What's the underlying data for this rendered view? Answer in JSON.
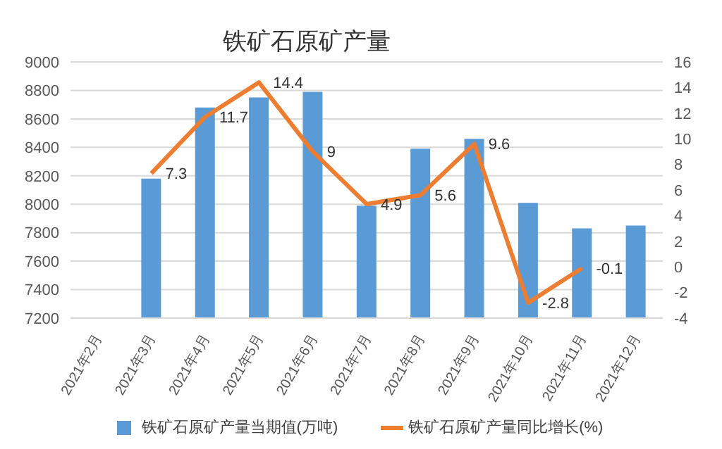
{
  "chart_data": {
    "type": "bar",
    "title": "铁矿石原矿产量",
    "categories": [
      "2021年2月",
      "2021年3月",
      "2021年4月",
      "2021年5月",
      "2021年6月",
      "2021年7月",
      "2021年8月",
      "2021年9月",
      "2021年10月",
      "2021年11月",
      "2021年12月"
    ],
    "series": [
      {
        "name": "铁矿石原矿产量当期值(万吨)",
        "color": "#5b9bd5",
        "values": [
          null,
          8180,
          8680,
          8750,
          8790,
          7990,
          8390,
          8460,
          8010,
          7830,
          7850
        ]
      },
      {
        "name": "铁矿石原矿产量同比增长(%)",
        "type": "line",
        "axis": "y2",
        "color": "#ed7d31",
        "data_labels": true,
        "values": [
          null,
          7.3,
          11.7,
          14.4,
          9,
          4.9,
          5.6,
          9.6,
          -2.8,
          -0.1,
          null
        ]
      }
    ],
    "ylim": [
      7200,
      9000
    ],
    "yticks": [
      7200,
      7400,
      7600,
      7800,
      8000,
      8200,
      8400,
      8600,
      8800,
      9000
    ],
    "y2lim": [
      -4,
      16
    ],
    "y2ticks": [
      -4,
      -2,
      0,
      2,
      4,
      6,
      8,
      10,
      12,
      14,
      16
    ],
    "grid": "y",
    "legend": "bottom",
    "marker": "none"
  }
}
